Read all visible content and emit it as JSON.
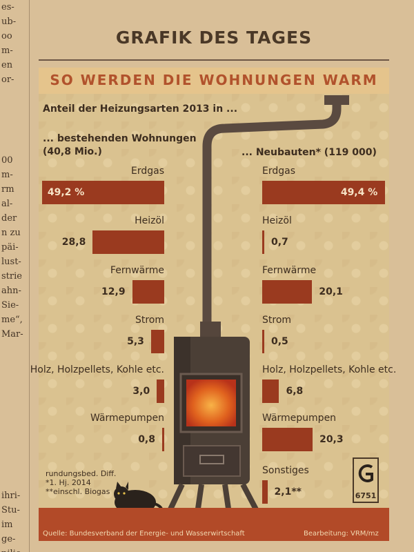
{
  "margin_text": {
    "top": [
      "es-",
      "ub-",
      "oo",
      "m-",
      "en",
      "or-"
    ],
    "mid": [
      "00",
      "m-",
      "rm",
      "al-",
      "der",
      "n zu",
      "päi-",
      "lust-",
      "strie",
      "ahn-",
      "Sie-",
      "me“,",
      "Mar-"
    ],
    "bottom": [
      "ihri-",
      "Stu-",
      "im",
      "ge-",
      "nilie"
    ]
  },
  "graphic_title": "GRAFIK DES TAGES",
  "banner": "SO WERDEN DIE WOHNUNGEN WARM",
  "subtitle": "Anteil der Heizungsarten 2013 in ...",
  "left_group": {
    "line1": "... bestehenden Wohnungen",
    "line2": "(40,8 Mio.)"
  },
  "right_group": {
    "line1": "... Neubauten* (119 000)"
  },
  "chart_data": {
    "type": "bar",
    "title": "SO WERDEN DIE WOHNUNGEN WARM",
    "subtitle": "Anteil der Heizungsarten 2013 in ...",
    "units": "%",
    "categories": [
      "Erdgas",
      "Heizöl",
      "Fernwärme",
      "Strom",
      "Holz, Holzpellets, Kohle etc.",
      "Wärmepumpen",
      "Sonstiges"
    ],
    "series": [
      {
        "name": "... bestehenden Wohnungen (40,8 Mio.)",
        "values": [
          49.2,
          28.8,
          12.9,
          5.3,
          3.0,
          0.8,
          null
        ],
        "labels": [
          "49,2 %",
          "28,8",
          "12,9",
          "5,3",
          "3,0",
          "0,8",
          ""
        ]
      },
      {
        "name": "... Neubauten* (119 000)",
        "values": [
          49.4,
          0.7,
          20.1,
          0.5,
          6.8,
          20.3,
          2.1
        ],
        "labels": [
          "49,4 %",
          "0,7",
          "20,1",
          "0,5",
          "6,8",
          "20,3",
          "2,1**"
        ]
      }
    ]
  },
  "footnotes": [
    "rundungsbed. Diff.",
    "*1. Hj. 2014",
    "**einschl. Biogas"
  ],
  "logo_code": "6751",
  "source": "Quelle: Bundesverband der Energie- und Wasserwirtschaft",
  "credit": "Bearbeitung: VRM/mz",
  "colors": {
    "bar": "#9a3a1f",
    "banner_text": "#b1522c",
    "footer": "#b24a28"
  }
}
